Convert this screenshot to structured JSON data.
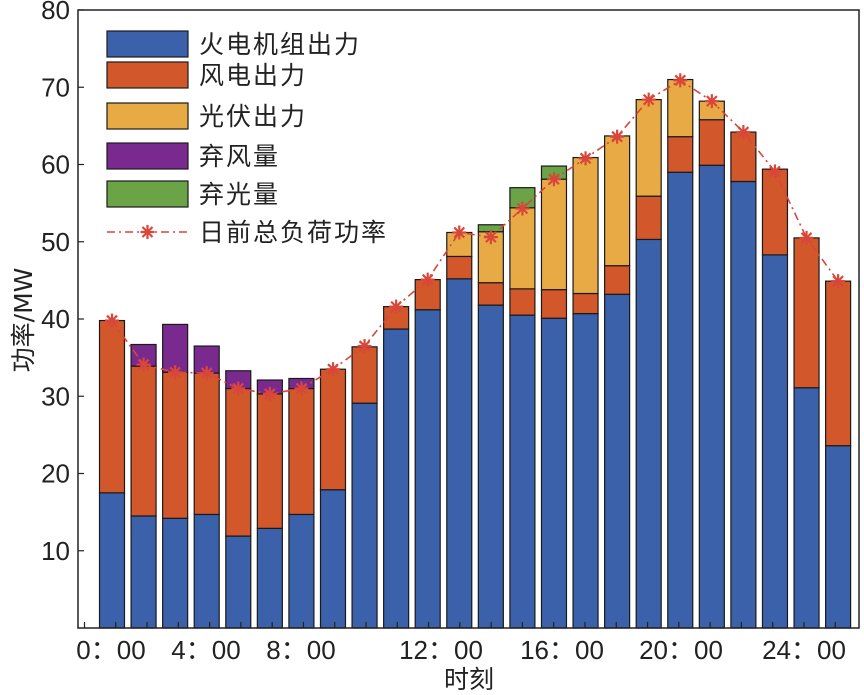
{
  "chart_data": {
    "type": "bar",
    "stacked": true,
    "xlabel": "时刻",
    "ylabel": "功率/MW",
    "ylim": [
      0,
      80
    ],
    "yticks": [
      "10",
      "20",
      "30",
      "40",
      "50",
      "60",
      "70",
      "80"
    ],
    "xtick_labels": [
      "0：00",
      "4：00",
      "8：00",
      "12：00",
      "16：00",
      "20：00",
      "24：00"
    ],
    "hours": [
      1,
      2,
      3,
      4,
      5,
      6,
      7,
      8,
      9,
      10,
      11,
      12,
      13,
      14,
      15,
      16,
      17,
      18,
      19,
      20,
      21,
      22,
      23,
      24
    ],
    "series": [
      {
        "name": "火电机组出力",
        "color": "#3a61aa",
        "values": [
          17.5,
          14.5,
          14.2,
          14.7,
          11.9,
          12.9,
          14.7,
          17.9,
          29.1,
          38.7,
          41.2,
          45.2,
          41.8,
          40.5,
          40.1,
          40.7,
          43.2,
          50.3,
          59,
          59.9,
          57.8,
          48.3,
          31.1,
          23.6
        ]
      },
      {
        "name": "风电出力",
        "color": "#d2572a",
        "values": [
          22.3,
          19.4,
          18.9,
          18.3,
          19.1,
          17.4,
          16.3,
          15.6,
          7.3,
          2.9,
          3.9,
          2.9,
          2.9,
          3.4,
          3.7,
          2.6,
          3.7,
          5.6,
          4.6,
          5.9,
          6.4,
          11.1,
          19.4,
          21.3
        ]
      },
      {
        "name": "光伏出力",
        "color": "#e8aa45",
        "values": [
          0,
          0,
          0,
          0,
          0,
          0,
          0,
          0,
          0,
          0,
          0,
          3.1,
          6.6,
          10.5,
          14.3,
          17.6,
          16.8,
          12.5,
          7.4,
          2.4,
          0,
          0,
          0,
          0
        ]
      },
      {
        "name": "弃风量",
        "color": "#7a2a8e",
        "values": [
          0,
          2.8,
          6.2,
          3.5,
          2.3,
          1.8,
          1.3,
          0,
          0,
          0,
          0,
          0,
          0,
          0,
          0,
          0,
          0,
          0,
          0,
          0,
          0,
          0,
          0,
          0
        ]
      },
      {
        "name": "弃光量",
        "color": "#6ba447",
        "values": [
          0,
          0,
          0,
          0,
          0,
          0,
          0,
          0,
          0,
          0,
          0,
          0,
          0.9,
          2.6,
          1.7,
          0,
          0,
          0,
          0,
          0,
          0,
          0,
          0,
          0
        ]
      }
    ],
    "line": {
      "name": "日前总负荷功率",
      "color": "#d9463a",
      "style": "dash-dot",
      "marker": "asterisk",
      "values": [
        39.8,
        34.1,
        33.1,
        33,
        31,
        30.3,
        31,
        33.5,
        36.5,
        41.6,
        45.1,
        51.2,
        50.6,
        54.3,
        58.1,
        60.8,
        63.6,
        68.4,
        70.9,
        68.2,
        64.2,
        59.1,
        50.5,
        44.9
      ]
    },
    "legend": {
      "position": "top-left"
    }
  }
}
